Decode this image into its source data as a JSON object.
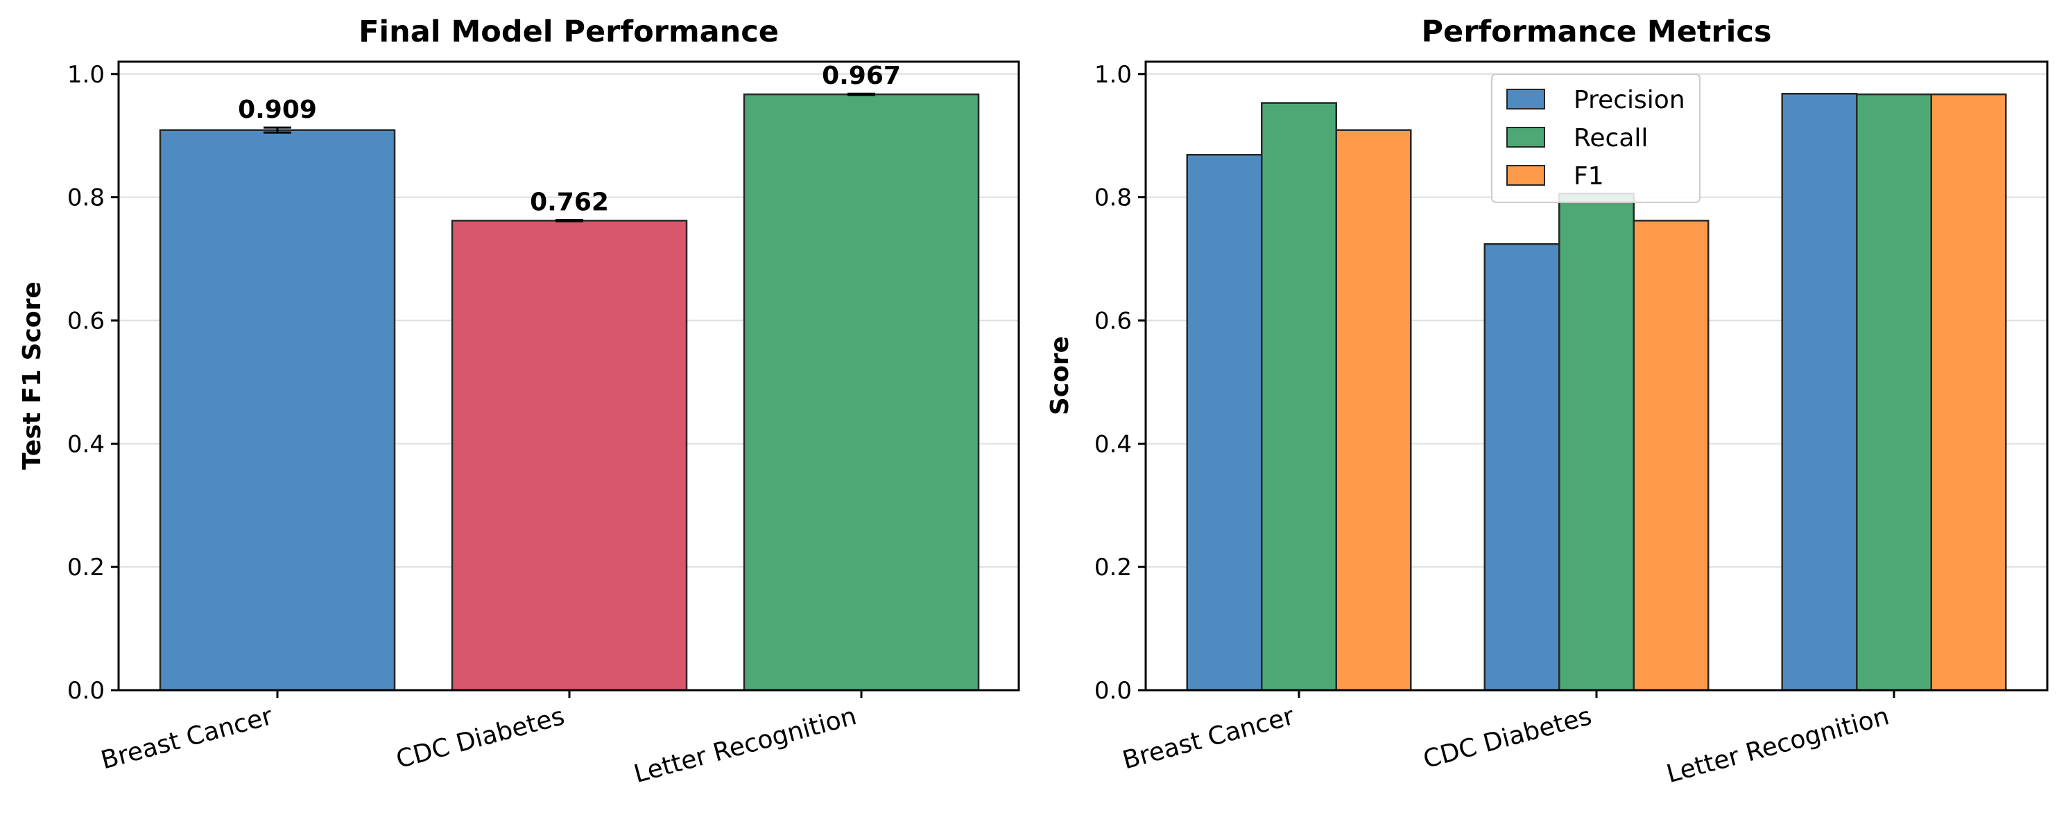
{
  "chart_data": [
    {
      "type": "bar",
      "title": "Final Model Performance",
      "xlabel": "",
      "ylabel": "Test F1 Score",
      "categories": [
        "Breast Cancer",
        "CDC Diabetes",
        "Letter Recognition"
      ],
      "values": [
        0.909,
        0.762,
        0.967
      ],
      "errors": [
        0.004,
        0.001,
        0.001
      ],
      "value_labels": [
        "0.909",
        "0.762",
        "0.967"
      ],
      "colors": [
        "#4f8bc0",
        "#d9576d",
        "#4da876"
      ],
      "ylim": [
        0,
        1.02
      ],
      "yticks": [
        0.0,
        0.2,
        0.4,
        0.6,
        0.8,
        1.0
      ],
      "ytick_labels": [
        "0.0",
        "0.2",
        "0.4",
        "0.6",
        "0.8",
        "1.0"
      ],
      "grid": true
    },
    {
      "type": "bar",
      "title": "Performance Metrics",
      "xlabel": "",
      "ylabel": "Score",
      "categories": [
        "Breast Cancer",
        "CDC Diabetes",
        "Letter Recognition"
      ],
      "series": [
        {
          "name": "Precision",
          "values": [
            0.869,
            0.724,
            0.968
          ],
          "color": "#4f8bc0"
        },
        {
          "name": "Recall",
          "values": [
            0.953,
            0.806,
            0.967
          ],
          "color": "#4da876"
        },
        {
          "name": "F1",
          "values": [
            0.909,
            0.762,
            0.967
          ],
          "color": "#ff9a4a"
        }
      ],
      "ylim": [
        0,
        1.02
      ],
      "yticks": [
        0.0,
        0.2,
        0.4,
        0.6,
        0.8,
        1.0
      ],
      "ytick_labels": [
        "0.0",
        "0.2",
        "0.4",
        "0.6",
        "0.8",
        "1.0"
      ],
      "legend_position": "top-center",
      "grid": true
    }
  ]
}
